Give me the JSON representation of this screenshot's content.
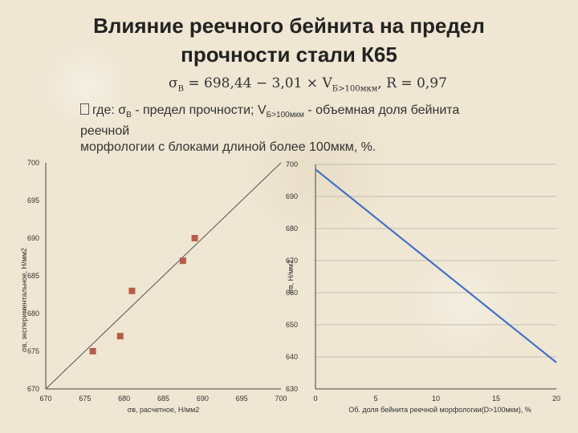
{
  "title": "Влияние реечного бейнита на предел прочности стали К65",
  "formula": {
    "lhs": "σ",
    "lhs_sub": "В",
    "middle": " = 698,44 − 3,01 × V",
    "middle_sub": "Б>100мкм",
    "rhs": ", R = 0,97"
  },
  "legend": {
    "line1_start": "где: σ",
    "line1_sub1": "В",
    "line1_mid": " - предел прочности; V",
    "line1_sub2": "Б>100мкм",
    "line1_end": " - объемная доля бейнита реечной",
    "line2": "морфологии с   блоками длиной более 100мкм, %."
  },
  "chart_data": [
    {
      "type": "scatter",
      "title": "",
      "xlabel": "σв, расчетное, Н/мм2",
      "ylabel": "σв, экспериментальное, Н/мм2",
      "xlim": [
        670,
        700
      ],
      "ylim": [
        670,
        700
      ],
      "x_ticks": [
        670,
        675,
        680,
        685,
        690,
        695,
        700
      ],
      "y_ticks": [
        670,
        675,
        680,
        685,
        690,
        695,
        700
      ],
      "points": [
        {
          "x": 676,
          "y": 675
        },
        {
          "x": 679.5,
          "y": 677
        },
        {
          "x": 681,
          "y": 683
        },
        {
          "x": 687.5,
          "y": 687
        },
        {
          "x": 689,
          "y": 690
        }
      ],
      "reference_line": {
        "from": [
          670,
          670
        ],
        "to": [
          700,
          700
        ]
      },
      "marker_color": "#b85c4a",
      "line_color": "#555555"
    },
    {
      "type": "line",
      "title": "",
      "xlabel": "Об. доля бейнита реечной морфологии(D>100мкм), %",
      "ylabel": "σв, Н/мм2",
      "xlim": [
        0,
        20
      ],
      "ylim": [
        630,
        700
      ],
      "x_ticks": [
        0,
        5,
        10,
        15,
        20
      ],
      "y_ticks": [
        630,
        640,
        650,
        660,
        670,
        680,
        690,
        700
      ],
      "series": [
        {
          "x": [
            0,
            20
          ],
          "y": [
            698.44,
            638.24
          ],
          "color": "#4472c4"
        }
      ]
    }
  ]
}
